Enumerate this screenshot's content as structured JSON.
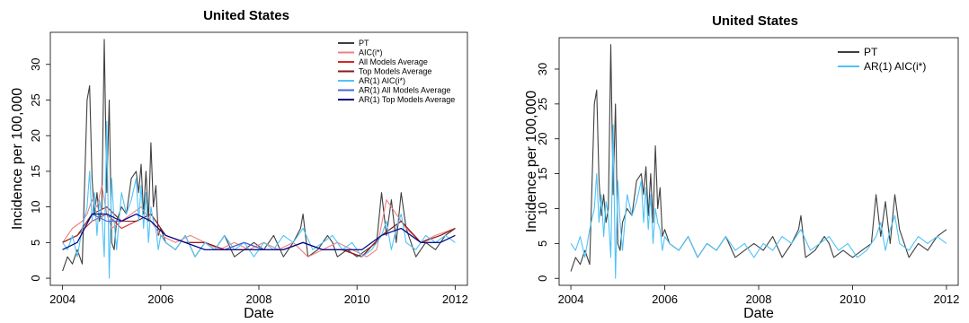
{
  "chart_data": [
    {
      "type": "line",
      "title": "United States",
      "xlabel": "Date",
      "ylabel": "Incidence per 100,000",
      "xlim": [
        2003.75,
        2012.25
      ],
      "ylim": [
        -1,
        34.5
      ],
      "x_ticks": [
        2004,
        2006,
        2008,
        2010,
        2012
      ],
      "x_tick_labels": [
        "2004",
        "2006",
        "2008",
        "2010",
        "2012"
      ],
      "y_ticks": [
        0,
        5,
        10,
        15,
        20,
        25,
        30
      ],
      "y_tick_labels": [
        "0",
        "5",
        "10",
        "15",
        "20",
        "25",
        "30"
      ],
      "grid": false,
      "legend_position": "top-right",
      "series": [
        {
          "name": "PT",
          "color": "#3f3f3f",
          "x": [
            2004.0,
            2004.1,
            2004.2,
            2004.3,
            2004.4,
            2004.5,
            2004.55,
            2004.6,
            2004.65,
            2004.7,
            2004.75,
            2004.8,
            2004.85,
            2004.9,
            2004.95,
            2005.0,
            2005.05,
            2005.1,
            2005.2,
            2005.3,
            2005.4,
            2005.5,
            2005.55,
            2005.6,
            2005.65,
            2005.7,
            2005.75,
            2005.8,
            2005.85,
            2005.9,
            2005.95,
            2006.0,
            2006.1,
            2006.3,
            2006.5,
            2006.7,
            2006.9,
            2007.1,
            2007.3,
            2007.5,
            2007.7,
            2007.9,
            2008.1,
            2008.3,
            2008.5,
            2008.7,
            2008.85,
            2008.9,
            2009.0,
            2009.2,
            2009.4,
            2009.5,
            2009.6,
            2009.8,
            2010.0,
            2010.2,
            2010.4,
            2010.5,
            2010.6,
            2010.7,
            2010.8,
            2010.9,
            2011.0,
            2011.2,
            2011.4,
            2011.6,
            2011.8,
            2012.0
          ],
          "y": [
            1,
            3,
            2,
            4,
            2,
            25,
            27,
            14,
            9,
            12,
            8,
            10,
            33.5,
            12,
            25,
            5,
            4,
            8,
            10,
            9,
            14,
            15,
            12,
            16,
            9,
            15,
            8,
            19,
            10,
            13,
            6,
            7,
            5,
            4,
            6,
            3,
            5,
            4,
            6,
            3,
            4,
            5,
            4,
            6,
            3,
            5,
            7,
            9,
            3,
            4,
            6,
            5,
            3,
            4,
            3,
            4,
            5,
            12,
            6,
            11,
            5,
            12,
            7,
            3,
            5,
            4,
            6,
            7
          ]
        },
        {
          "name": "AIC(i*)",
          "color": "#f08080",
          "x": [
            2004.0,
            2004.2,
            2004.4,
            2004.5,
            2004.6,
            2004.7,
            2004.8,
            2004.9,
            2005.0,
            2005.2,
            2005.4,
            2005.6,
            2005.8,
            2006.0,
            2006.3,
            2006.6,
            2006.9,
            2007.2,
            2007.5,
            2007.8,
            2008.1,
            2008.4,
            2008.7,
            2009.0,
            2009.3,
            2009.6,
            2009.9,
            2010.2,
            2010.4,
            2010.6,
            2010.8,
            2011.0,
            2011.3,
            2011.6,
            2012.0
          ],
          "y": [
            5,
            7,
            8,
            9,
            11,
            10,
            13,
            9,
            7,
            8,
            9,
            10,
            8,
            6,
            5,
            6,
            5,
            4,
            5,
            4,
            5,
            4,
            5,
            3,
            4,
            5,
            4,
            3,
            4,
            11,
            9,
            7,
            5,
            6,
            7
          ]
        },
        {
          "name": "All Models Average",
          "color": "#d62728",
          "x": [
            2004.0,
            2004.3,
            2004.6,
            2004.9,
            2005.2,
            2005.5,
            2005.8,
            2006.1,
            2006.5,
            2006.9,
            2007.3,
            2007.7,
            2008.1,
            2008.5,
            2008.9,
            2009.3,
            2009.7,
            2010.1,
            2010.5,
            2010.9,
            2011.3,
            2011.7,
            2012.0
          ],
          "y": [
            5,
            6,
            8,
            9,
            7,
            8,
            9,
            6,
            5,
            5,
            4,
            5,
            4,
            4,
            5,
            4,
            4,
            3,
            6,
            8,
            5,
            6,
            7
          ]
        },
        {
          "name": "Top Models Average",
          "color": "#8b1a1a",
          "x": [
            2004.0,
            2004.3,
            2004.6,
            2004.9,
            2005.2,
            2005.5,
            2005.8,
            2006.1,
            2006.5,
            2006.9,
            2007.3,
            2007.7,
            2008.1,
            2008.5,
            2008.9,
            2009.3,
            2009.7,
            2010.1,
            2010.5,
            2010.9,
            2011.3,
            2011.7,
            2012.0
          ],
          "y": [
            5,
            6,
            9,
            10,
            8,
            8,
            9,
            6,
            5,
            5,
            4,
            4,
            4,
            4,
            5,
            4,
            4,
            3,
            6,
            8,
            5,
            6,
            7
          ]
        },
        {
          "name": "AR(1) AIC(i*)",
          "color": "#4fc3f7",
          "x": [
            2004.0,
            2004.1,
            2004.2,
            2004.3,
            2004.4,
            2004.5,
            2004.55,
            2004.6,
            2004.65,
            2004.7,
            2004.75,
            2004.8,
            2004.85,
            2004.9,
            2004.95,
            2005.0,
            2005.05,
            2005.1,
            2005.2,
            2005.3,
            2005.4,
            2005.5,
            2005.55,
            2005.6,
            2005.65,
            2005.7,
            2005.75,
            2005.8,
            2005.85,
            2005.9,
            2005.95,
            2006.0,
            2006.1,
            2006.3,
            2006.5,
            2006.7,
            2006.9,
            2007.1,
            2007.3,
            2007.5,
            2007.7,
            2007.9,
            2008.1,
            2008.3,
            2008.5,
            2008.7,
            2008.9,
            2009.1,
            2009.3,
            2009.5,
            2009.7,
            2009.9,
            2010.1,
            2010.3,
            2010.5,
            2010.6,
            2010.7,
            2010.8,
            2010.9,
            2011.0,
            2011.2,
            2011.4,
            2011.6,
            2011.8,
            2012.0
          ],
          "y": [
            5,
            4,
            6,
            3,
            7,
            10,
            15,
            8,
            12,
            6,
            11,
            9,
            3,
            22,
            0,
            14,
            8,
            4,
            12,
            9,
            11,
            14,
            8,
            13,
            7,
            12,
            5,
            10,
            8,
            7,
            4,
            6,
            5,
            4,
            6,
            3,
            5,
            4,
            6,
            4,
            5,
            3,
            5,
            4,
            6,
            5,
            7,
            4,
            5,
            6,
            4,
            5,
            3,
            4,
            6,
            8,
            4,
            7,
            9,
            5,
            4,
            6,
            5,
            6,
            5
          ]
        },
        {
          "name": "AR(1) All Models Average",
          "color": "#4169e1",
          "x": [
            2004.0,
            2004.3,
            2004.6,
            2004.9,
            2005.2,
            2005.5,
            2005.8,
            2006.1,
            2006.5,
            2006.9,
            2007.3,
            2007.7,
            2008.1,
            2008.5,
            2008.9,
            2009.3,
            2009.7,
            2010.1,
            2010.5,
            2010.9,
            2011.3,
            2011.7,
            2012.0
          ],
          "y": [
            4,
            5,
            9,
            8,
            8,
            9,
            8,
            6,
            5,
            4,
            4,
            5,
            4,
            4,
            5,
            4,
            4,
            4,
            6,
            7,
            5,
            5,
            6
          ]
        },
        {
          "name": "AR(1) Top Models Average",
          "color": "#000080",
          "x": [
            2004.0,
            2004.3,
            2004.6,
            2004.9,
            2005.2,
            2005.5,
            2005.8,
            2006.1,
            2006.5,
            2006.9,
            2007.3,
            2007.7,
            2008.1,
            2008.5,
            2008.9,
            2009.3,
            2009.7,
            2010.1,
            2010.5,
            2010.9,
            2011.3,
            2011.7,
            2012.0
          ],
          "y": [
            4,
            5,
            9,
            9,
            8,
            9,
            8,
            6,
            5,
            4,
            4,
            4,
            4,
            4,
            5,
            4,
            4,
            4,
            6,
            7,
            5,
            5,
            6
          ]
        }
      ]
    },
    {
      "type": "line",
      "title": "United States",
      "xlabel": "Date",
      "ylabel": "Incidence per 100,000",
      "xlim": [
        2003.75,
        2012.25
      ],
      "ylim": [
        -1,
        34.5
      ],
      "x_ticks": [
        2004,
        2006,
        2008,
        2010,
        2012
      ],
      "x_tick_labels": [
        "2004",
        "2006",
        "2008",
        "2010",
        "2012"
      ],
      "y_ticks": [
        0,
        5,
        10,
        15,
        20,
        25,
        30
      ],
      "y_tick_labels": [
        "0",
        "5",
        "10",
        "15",
        "20",
        "25",
        "30"
      ],
      "grid": false,
      "legend_position": "top-right",
      "series": [
        {
          "name": "PT",
          "color": "#3f3f3f",
          "x": [
            2004.0,
            2004.1,
            2004.2,
            2004.3,
            2004.4,
            2004.5,
            2004.55,
            2004.6,
            2004.65,
            2004.7,
            2004.75,
            2004.8,
            2004.85,
            2004.9,
            2004.95,
            2005.0,
            2005.05,
            2005.1,
            2005.2,
            2005.3,
            2005.4,
            2005.5,
            2005.55,
            2005.6,
            2005.65,
            2005.7,
            2005.75,
            2005.8,
            2005.85,
            2005.9,
            2005.95,
            2006.0,
            2006.1,
            2006.3,
            2006.5,
            2006.7,
            2006.9,
            2007.1,
            2007.3,
            2007.5,
            2007.7,
            2007.9,
            2008.1,
            2008.3,
            2008.5,
            2008.7,
            2008.85,
            2008.9,
            2009.0,
            2009.2,
            2009.4,
            2009.5,
            2009.6,
            2009.8,
            2010.0,
            2010.2,
            2010.4,
            2010.5,
            2010.6,
            2010.7,
            2010.8,
            2010.9,
            2011.0,
            2011.2,
            2011.4,
            2011.6,
            2011.8,
            2012.0
          ],
          "y": [
            1,
            3,
            2,
            4,
            2,
            25,
            27,
            14,
            9,
            12,
            8,
            10,
            33.5,
            12,
            25,
            5,
            4,
            8,
            10,
            9,
            14,
            15,
            12,
            16,
            9,
            15,
            8,
            19,
            10,
            13,
            6,
            7,
            5,
            4,
            6,
            3,
            5,
            4,
            6,
            3,
            4,
            5,
            4,
            6,
            3,
            5,
            7,
            9,
            3,
            4,
            6,
            5,
            3,
            4,
            3,
            4,
            5,
            12,
            6,
            11,
            5,
            12,
            7,
            3,
            5,
            4,
            6,
            7
          ]
        },
        {
          "name": "AR(1) AIC(i*)",
          "color": "#4fc3f7",
          "x": [
            2004.0,
            2004.1,
            2004.2,
            2004.3,
            2004.4,
            2004.5,
            2004.55,
            2004.6,
            2004.65,
            2004.7,
            2004.75,
            2004.8,
            2004.85,
            2004.9,
            2004.95,
            2005.0,
            2005.05,
            2005.1,
            2005.2,
            2005.3,
            2005.4,
            2005.5,
            2005.55,
            2005.6,
            2005.65,
            2005.7,
            2005.75,
            2005.8,
            2005.85,
            2005.9,
            2005.95,
            2006.0,
            2006.1,
            2006.3,
            2006.5,
            2006.7,
            2006.9,
            2007.1,
            2007.3,
            2007.5,
            2007.7,
            2007.9,
            2008.1,
            2008.3,
            2008.5,
            2008.7,
            2008.9,
            2009.1,
            2009.3,
            2009.5,
            2009.7,
            2009.9,
            2010.1,
            2010.3,
            2010.5,
            2010.6,
            2010.7,
            2010.8,
            2010.9,
            2011.0,
            2011.2,
            2011.4,
            2011.6,
            2011.8,
            2012.0
          ],
          "y": [
            5,
            4,
            6,
            3,
            7,
            10,
            15,
            8,
            12,
            6,
            11,
            9,
            3,
            22,
            0,
            14,
            8,
            4,
            12,
            9,
            11,
            14,
            8,
            13,
            7,
            12,
            5,
            10,
            8,
            7,
            4,
            6,
            5,
            4,
            6,
            3,
            5,
            4,
            6,
            4,
            5,
            3,
            5,
            4,
            6,
            5,
            7,
            4,
            5,
            6,
            4,
            5,
            3,
            4,
            6,
            8,
            4,
            7,
            9,
            5,
            4,
            6,
            5,
            6,
            5
          ]
        }
      ]
    }
  ]
}
